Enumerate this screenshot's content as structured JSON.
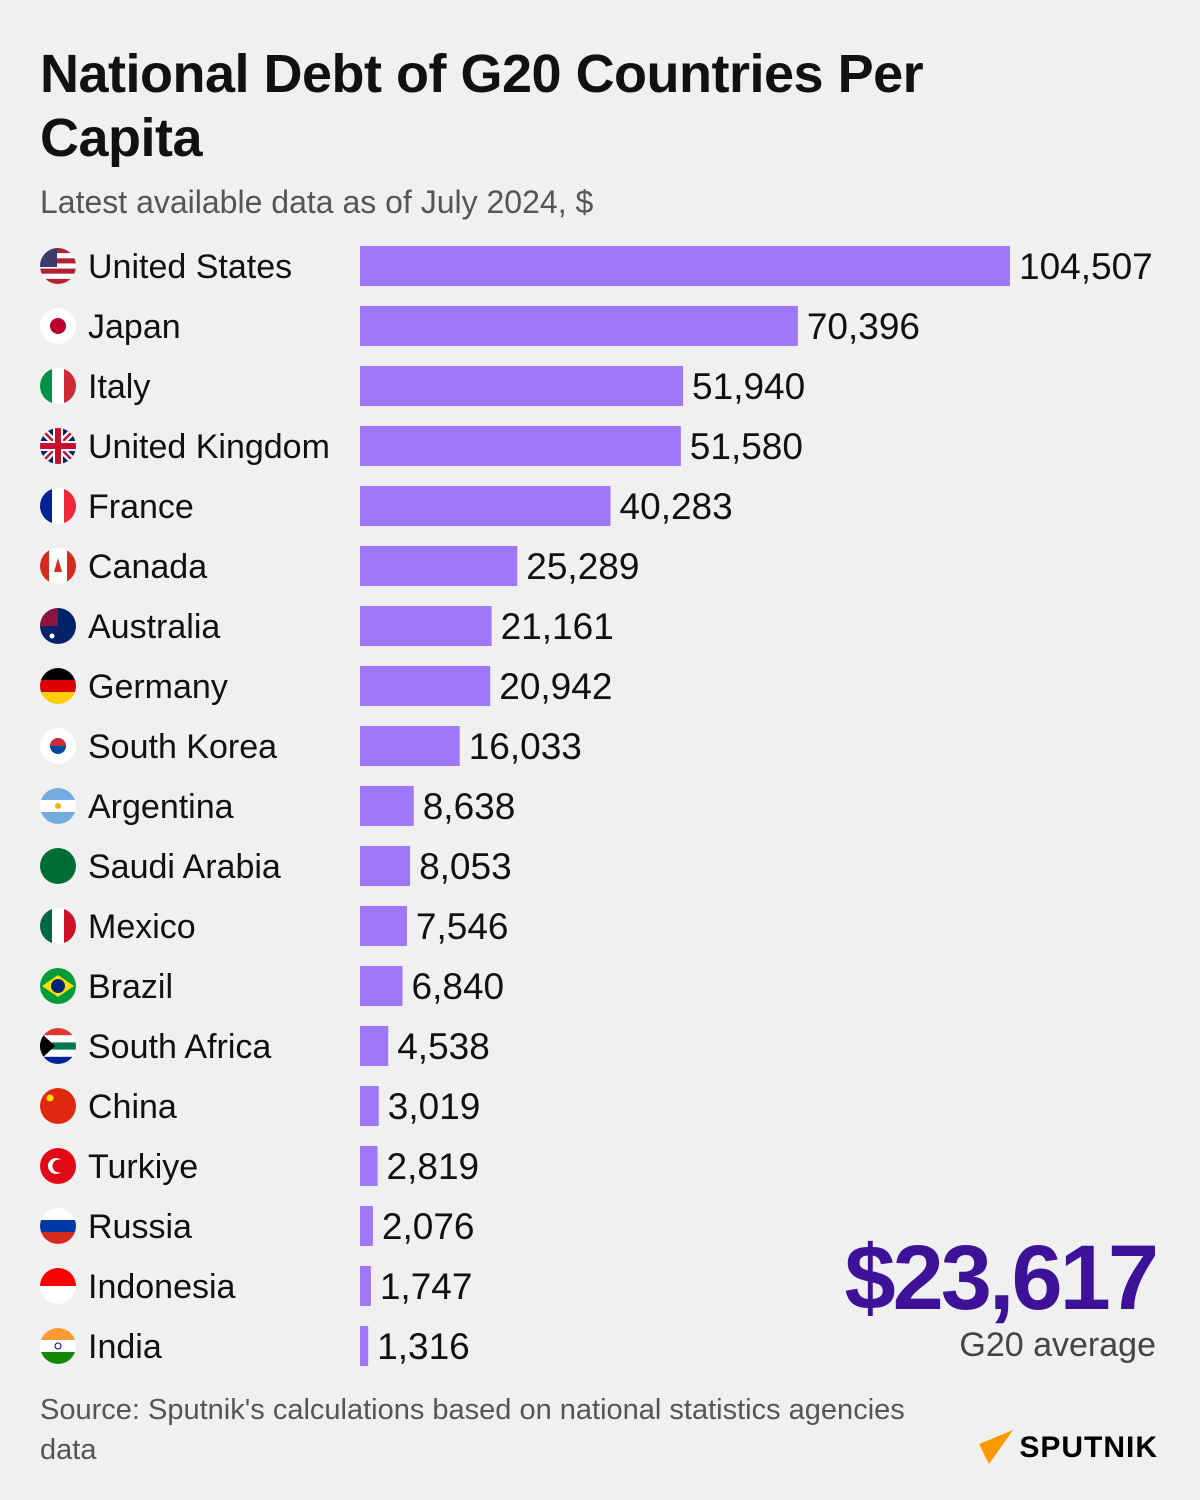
{
  "title": "National Debt of G20 Countries Per Capita",
  "subtitle": "Latest available data as of July 2024, $",
  "colors": {
    "bar": "#a077f8",
    "accent": "#3d1299",
    "background": "#f0f0f0",
    "logo": "#ff9900"
  },
  "chart_data": {
    "type": "bar",
    "orientation": "horizontal",
    "categories": [
      "United States",
      "Japan",
      "Italy",
      "United Kingdom",
      "France",
      "Canada",
      "Australia",
      "Germany",
      "South Korea",
      "Argentina",
      "Saudi Arabia",
      "Mexico",
      "Brazil",
      "South Africa",
      "China",
      "Turkiye",
      "Russia",
      "Indonesia",
      "India"
    ],
    "values": [
      104507,
      70396,
      51940,
      51580,
      40283,
      25289,
      21161,
      20942,
      16033,
      8638,
      8053,
      7546,
      6840,
      4538,
      3019,
      2819,
      2076,
      1747,
      1316
    ],
    "value_labels": [
      "104,507",
      "70,396",
      "51,940",
      "51,580",
      "40,283",
      "25,289",
      "21,161",
      "20,942",
      "16,033",
      "8,638",
      "8,053",
      "7,546",
      "6,840",
      "4,538",
      "3,019",
      "2,819",
      "2,076",
      "1,747",
      "1,316"
    ],
    "icons": [
      "flag-us",
      "flag-japan",
      "flag-italy",
      "flag-uk",
      "flag-france",
      "flag-canada",
      "flag-australia",
      "flag-germany",
      "flag-south-korea",
      "flag-argentina",
      "flag-saudi-arabia",
      "flag-mexico",
      "flag-brazil",
      "flag-south-africa",
      "flag-china",
      "flag-turkiye",
      "flag-russia",
      "flag-indonesia",
      "flag-india"
    ],
    "xlim": [
      0,
      104507
    ],
    "grid": false
  },
  "average": {
    "value": "$23,617",
    "label": "G20 average"
  },
  "source": "Source: Sputnik's calculations based on national statistics agencies data",
  "logo": "SPUTNIK"
}
